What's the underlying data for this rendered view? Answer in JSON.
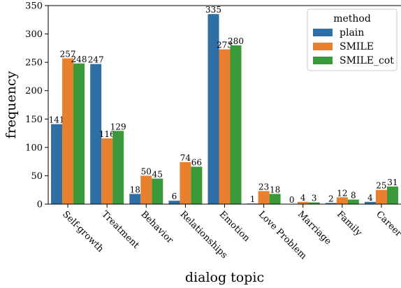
{
  "chart_data": {
    "type": "bar",
    "xlabel": "dialog topic",
    "ylabel": "frequency",
    "ylim": [
      0,
      350
    ],
    "yticks": [
      0,
      50,
      100,
      150,
      200,
      250,
      300,
      350
    ],
    "categories": [
      "Self-growth",
      "Treatment",
      "Behavior",
      "Relationships",
      "Emotion",
      "Love Problem",
      "Marriage",
      "Family",
      "Career"
    ],
    "series": [
      {
        "name": "plain",
        "color": "#2f6fa7",
        "values": [
          141,
          247,
          18,
          6,
          335,
          1,
          0,
          2,
          4
        ]
      },
      {
        "name": "SMILE",
        "color": "#e9802d",
        "values": [
          257,
          116,
          50,
          74,
          273,
          23,
          4,
          12,
          25
        ]
      },
      {
        "name": "SMILE_cot",
        "color": "#3a9a3a",
        "values": [
          248,
          129,
          45,
          66,
          280,
          18,
          3,
          8,
          31
        ]
      }
    ],
    "legend": {
      "title": "method",
      "placement": "top-right"
    },
    "grid": false
  }
}
